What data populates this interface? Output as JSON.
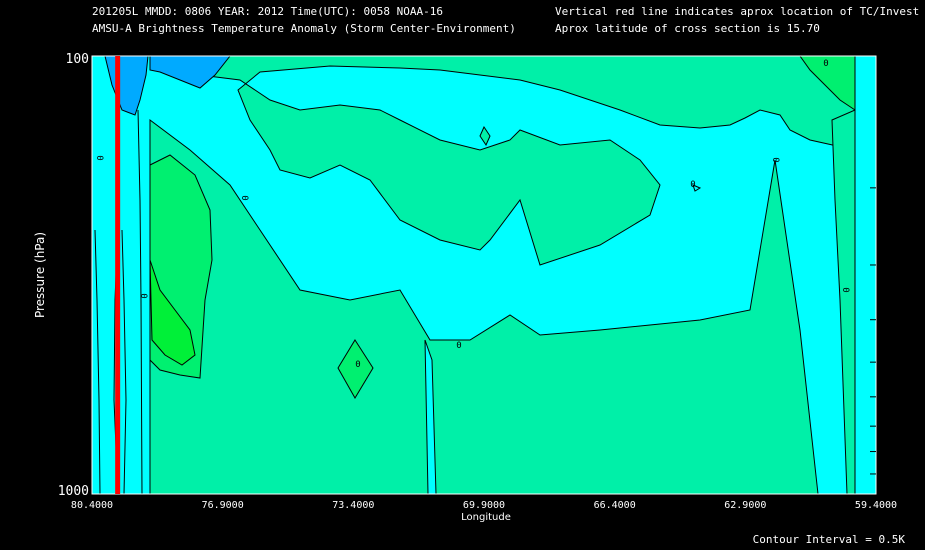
{
  "header": {
    "line1_left": "201205L  MMDD: 0806 YEAR: 2012 Time(UTC): 0058 NOAA-16",
    "line2_left": "AMSU-A Brightness Temperature Anomaly (Storm Center-Environment)",
    "line1_right": "Vertical red line indicates aprox location of TC/Invest",
    "line2_right": "Aprox latitude of cross section is 15.70"
  },
  "footer": {
    "contour_interval": "Contour Interval = 0.5K"
  },
  "colors": {
    "background": "#000000",
    "cyan": "#00FFFF",
    "blue": "#00AAFF",
    "aqua_green": "#00F0A8",
    "green": "#00F070",
    "bright_green": "#00F038",
    "tc_line": "#FF0000",
    "contour": "#000000"
  },
  "chart_data": {
    "type": "contour",
    "xlabel": "Longitude",
    "ylabel": "Pressure (hPa)",
    "x_ticks": [
      "80.4000",
      "76.9000",
      "73.4000",
      "69.9000",
      "66.4000",
      "62.9000",
      "59.4000"
    ],
    "x_tick_values": [
      80.4,
      76.9,
      73.4,
      69.9,
      66.4,
      62.9,
      59.4
    ],
    "xlim": [
      80.4,
      59.4
    ],
    "y_ticks": [
      "100",
      "1000"
    ],
    "ylim": [
      100,
      1000
    ],
    "y_scale": "log",
    "right_ticks_hpa": [
      200,
      300,
      400,
      500,
      600,
      700,
      800,
      900
    ],
    "tc_longitude": 79.9,
    "contour_labels": [
      "0",
      "0",
      "0",
      "0",
      "0",
      "0",
      "0",
      "0",
      "0"
    ],
    "contour_interval_k": 0.5
  }
}
